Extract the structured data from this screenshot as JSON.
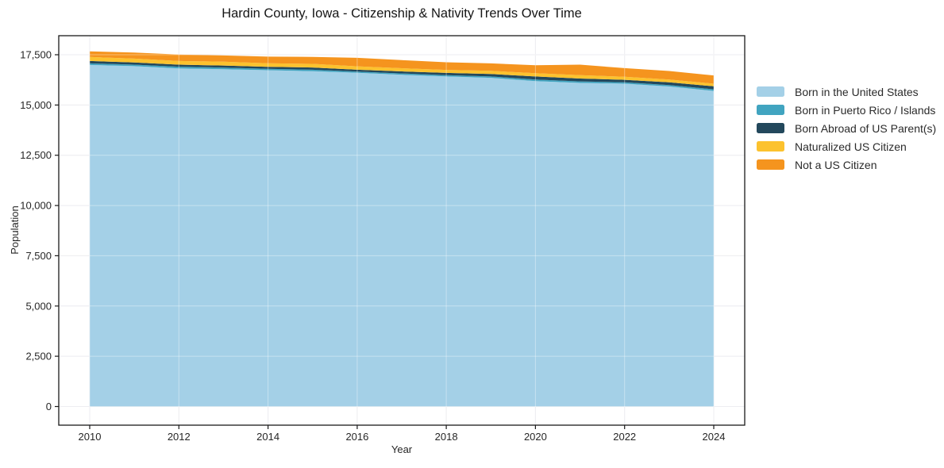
{
  "chart_data": {
    "type": "area",
    "stacked": true,
    "title": "Hardin County, Iowa - Citizenship & Nativity Trends Over Time",
    "xlabel": "Year",
    "ylabel": "Population",
    "grid": true,
    "legend_position": "right",
    "x": [
      2010,
      2011,
      2012,
      2013,
      2014,
      2015,
      2016,
      2017,
      2018,
      2019,
      2020,
      2021,
      2022,
      2023,
      2024
    ],
    "x_ticks": [
      2010,
      2012,
      2014,
      2016,
      2018,
      2020,
      2022,
      2024
    ],
    "x_tick_labels": [
      "2010",
      "2012",
      "2014",
      "2016",
      "2018",
      "2020",
      "2022",
      "2024"
    ],
    "y_ticks": [
      0,
      2500,
      5000,
      7500,
      10000,
      12500,
      15000,
      17500
    ],
    "y_tick_labels": [
      "0",
      "2,500",
      "5,000",
      "7,500",
      "10,000",
      "12,500",
      "15,000",
      "17,500"
    ],
    "ylim": [
      0,
      17500
    ],
    "series": [
      {
        "key": "born-in-us",
        "name": "Born in the United States",
        "color": "#a4d0e7",
        "values": [
          16990,
          16930,
          16820,
          16780,
          16730,
          16680,
          16600,
          16500,
          16420,
          16350,
          16190,
          16100,
          16060,
          15920,
          15700
        ]
      },
      {
        "key": "born-puerto-rico-islands",
        "name": "Born in Puerto Rico / Islands",
        "color": "#41a4c0",
        "values": [
          80,
          75,
          85,
          80,
          70,
          75,
          65,
          70,
          65,
          70,
          80,
          75,
          65,
          70,
          80
        ]
      },
      {
        "key": "born-abroad-us-parents",
        "name": "Born Abroad of US Parent(s)",
        "color": "#23485c",
        "values": [
          120,
          110,
          100,
          105,
          100,
          110,
          90,
          100,
          110,
          120,
          150,
          140,
          130,
          140,
          150
        ]
      },
      {
        "key": "naturalized-citizen",
        "name": "Naturalized US Citizen",
        "color": "#fcc22e",
        "values": [
          200,
          190,
          185,
          190,
          175,
          180,
          170,
          160,
          150,
          160,
          160,
          170,
          150,
          140,
          130
        ]
      },
      {
        "key": "not-a-citizen",
        "name": "Not a US Citizen",
        "color": "#f5941e",
        "values": [
          280,
          300,
          320,
          310,
          330,
          350,
          420,
          400,
          380,
          370,
          400,
          520,
          430,
          420,
          410
        ]
      }
    ]
  }
}
